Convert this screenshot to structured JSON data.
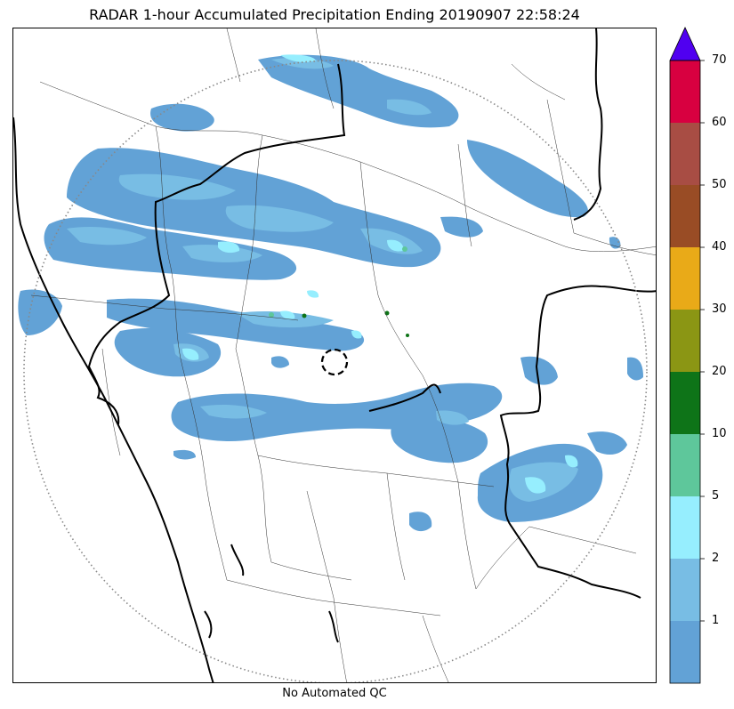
{
  "title": "RADAR 1-hour Accumulated Precipitation Ending 20190907 22:58:24",
  "qc_label": "No Automated QC",
  "colorbar": {
    "ticks": [
      "1",
      "2",
      "5",
      "10",
      "20",
      "30",
      "40",
      "50",
      "60",
      "70"
    ],
    "colors": [
      "#62a2d6",
      "#78bde4",
      "#96eefe",
      "#5ec79b",
      "#0e7418",
      "#8b9614",
      "#e9aa18",
      "#994c25",
      "#a84d44",
      "#d80040"
    ],
    "extend_color": "#5000f0",
    "extend": "max"
  },
  "map": {
    "radar_center_marker": "dashed-circle",
    "range_ring": "dotted-circle",
    "precip_colors": {
      "light": "#62a2d6",
      "moderate": "#78bde4",
      "heavy": "#96eefe",
      "green_light": "#5ec79b",
      "green_dark": "#0e7418"
    }
  }
}
